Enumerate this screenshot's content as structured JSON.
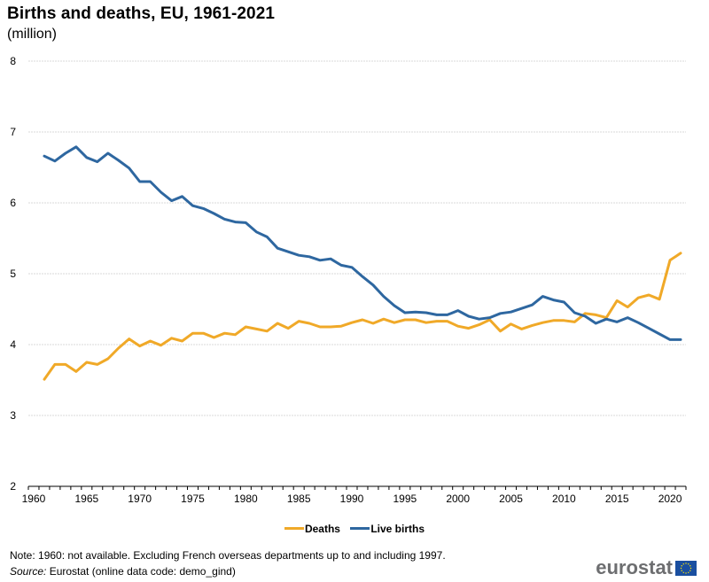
{
  "header": {
    "title": "Births and deaths, EU, 1961-2021",
    "subtitle": "(million)"
  },
  "chart_data": {
    "type": "line",
    "title": "Births and deaths, EU, 1961-2021",
    "subtitle": "(million)",
    "xlabel": "",
    "ylabel": "million",
    "xlim": [
      1960,
      2021
    ],
    "ylim": [
      2,
      8
    ],
    "yticks": [
      2,
      3,
      4,
      5,
      6,
      7,
      8
    ],
    "xtick_labels": [
      1960,
      1965,
      1970,
      1975,
      1980,
      1985,
      1990,
      1995,
      2000,
      2005,
      2010,
      2015,
      2020
    ],
    "grid": "horizontal",
    "legend_position": "bottom",
    "x": [
      1961,
      1962,
      1963,
      1964,
      1965,
      1966,
      1967,
      1968,
      1969,
      1970,
      1971,
      1972,
      1973,
      1974,
      1975,
      1976,
      1977,
      1978,
      1979,
      1980,
      1981,
      1982,
      1983,
      1984,
      1985,
      1986,
      1987,
      1988,
      1989,
      1990,
      1991,
      1992,
      1993,
      1994,
      1995,
      1996,
      1997,
      1998,
      1999,
      2000,
      2001,
      2002,
      2003,
      2004,
      2005,
      2006,
      2007,
      2008,
      2009,
      2010,
      2011,
      2012,
      2013,
      2014,
      2015,
      2016,
      2017,
      2018,
      2019,
      2020,
      2021
    ],
    "series": [
      {
        "name": "Deaths",
        "color": "#f0a928",
        "values": [
          3.51,
          3.72,
          3.72,
          3.62,
          3.75,
          3.72,
          3.8,
          3.95,
          4.08,
          3.98,
          4.05,
          3.99,
          4.09,
          4.05,
          4.16,
          4.16,
          4.1,
          4.16,
          4.14,
          4.25,
          4.22,
          4.19,
          4.3,
          4.23,
          4.33,
          4.3,
          4.25,
          4.25,
          4.26,
          4.31,
          4.35,
          4.3,
          4.36,
          4.31,
          4.35,
          4.35,
          4.31,
          4.33,
          4.33,
          4.26,
          4.23,
          4.28,
          4.35,
          4.19,
          4.29,
          4.22,
          4.27,
          4.31,
          4.34,
          4.34,
          4.32,
          4.44,
          4.42,
          4.38,
          4.62,
          4.53,
          4.66,
          4.7,
          4.64,
          5.19,
          5.29
        ]
      },
      {
        "name": "Live births",
        "color": "#2e67a0",
        "values": [
          6.66,
          6.59,
          6.7,
          6.79,
          6.64,
          6.58,
          6.7,
          6.6,
          6.49,
          6.3,
          6.3,
          6.15,
          6.03,
          6.09,
          5.96,
          5.92,
          5.85,
          5.77,
          5.73,
          5.72,
          5.59,
          5.52,
          5.36,
          5.31,
          5.26,
          5.24,
          5.19,
          5.21,
          5.12,
          5.09,
          4.96,
          4.84,
          4.68,
          4.55,
          4.45,
          4.46,
          4.45,
          4.42,
          4.42,
          4.48,
          4.4,
          4.36,
          4.38,
          4.44,
          4.46,
          4.51,
          4.56,
          4.68,
          4.63,
          4.6,
          4.45,
          4.4,
          4.3,
          4.36,
          4.32,
          4.38,
          4.31,
          4.23,
          4.15,
          4.07,
          4.07
        ]
      }
    ]
  },
  "legend": [
    {
      "label": "Deaths",
      "color": "#f0a928"
    },
    {
      "label": "Live births",
      "color": "#2e67a0"
    }
  ],
  "footer": {
    "note": "Note: 1960: not available. Excluding French overseas departments up to and including 1997.",
    "source_label": "Source:",
    "source_text": " Eurostat (online data code: demo_gind)",
    "logo_text": "eurostat"
  }
}
